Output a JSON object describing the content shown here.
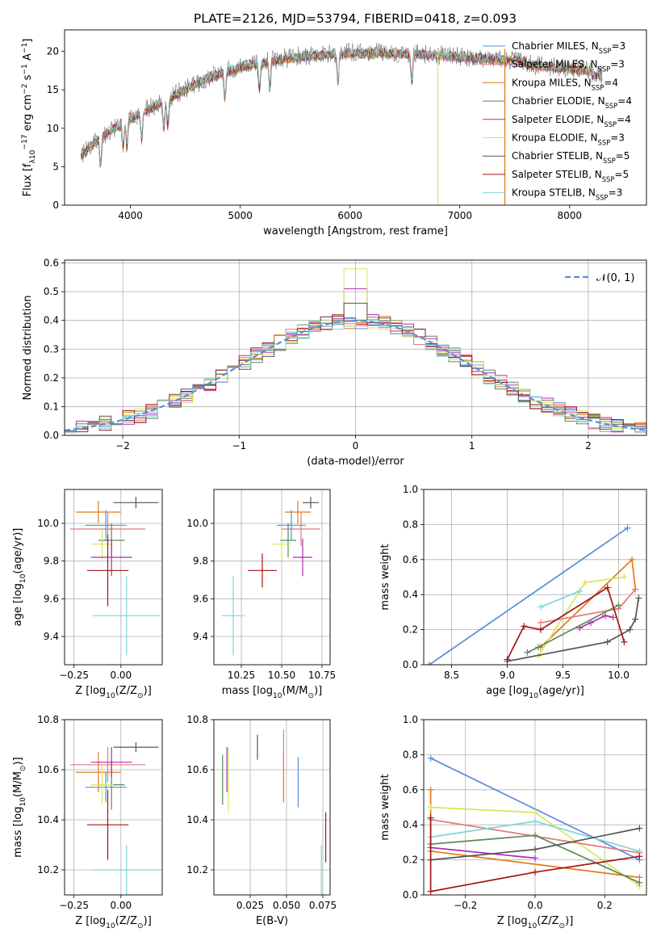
{
  "figure_title": "PLATE=2126, MJD=53794, FIBERID=0418, z=0.093",
  "colors": {
    "chabrier_miles": "#5b8dd9",
    "salpeter_miles": "#e07b7b",
    "kroupa_miles": "#e07b16",
    "chabrier_elodie": "#5b8a5b",
    "salpeter_elodie": "#b02bb0",
    "kroupa_elodie": "#d9e65c",
    "chabrier_stelib": "#555555",
    "salpeter_stelib": "#a31515",
    "kroupa_stelib": "#7fd6d6",
    "gaussian": "#5b8dd9"
  },
  "chart_data": [
    {
      "id": "spectrum",
      "type": "line",
      "xlabel": "wavelength [Angstrom, rest frame]",
      "ylabel_parts": [
        "Flux [f",
        "λ",
        "10",
        "−17",
        " erg cm",
        "−2",
        " s",
        "−1",
        " A",
        "−1",
        "]"
      ],
      "xlim": [
        3400,
        8700
      ],
      "ylim": [
        0,
        22.8
      ],
      "xticks": [
        4000,
        5000,
        6000,
        7000,
        8000
      ],
      "yticks": [
        0,
        5,
        10,
        15,
        20
      ],
      "continuum": {
        "x": [
          3550,
          3700,
          3900,
          4100,
          4300,
          4500,
          4700,
          4900,
          5100,
          5300,
          5500,
          5700,
          5900,
          6100,
          6300,
          6500,
          6700,
          6900,
          7100,
          7300,
          7500,
          7700,
          7900,
          8100,
          8300
        ],
        "y": [
          6.5,
          8.5,
          10.5,
          12.0,
          13.5,
          15.0,
          16.5,
          17.5,
          18.3,
          18.8,
          19.2,
          19.5,
          19.7,
          19.8,
          19.8,
          19.7,
          19.6,
          19.4,
          19.2,
          19.0,
          18.8,
          18.5,
          18.3,
          18.0,
          17.8
        ]
      },
      "absorption_lines": [
        3727,
        3933,
        3968,
        4102,
        4304,
        4340,
        4861,
        5175,
        5270,
        5890,
        6563
      ],
      "spikes": [
        {
          "x": 6800,
          "y": [
            0,
            20.3
          ],
          "color_key": "kroupa_elodie"
        },
        {
          "x": 7410,
          "y": [
            0,
            20.3
          ],
          "color_key": "kroupa_miles"
        }
      ],
      "series": [
        {
          "name_parts": [
            "Chabrier MILES, N",
            "SSP",
            "=3"
          ],
          "color_key": "chabrier_miles"
        },
        {
          "name_parts": [
            "Salpeter MILES, N",
            "SSP",
            "=3"
          ],
          "color_key": "salpeter_miles"
        },
        {
          "name_parts": [
            "Kroupa MILES, N",
            "SSP",
            "=4"
          ],
          "color_key": "kroupa_miles"
        },
        {
          "name_parts": [
            "Chabrier ELODIE, N",
            "SSP",
            "=4"
          ],
          "color_key": "chabrier_elodie"
        },
        {
          "name_parts": [
            "Salpeter ELODIE, N",
            "SSP",
            "=4"
          ],
          "color_key": "salpeter_elodie"
        },
        {
          "name_parts": [
            "Kroupa ELODIE, N",
            "SSP",
            "=3"
          ],
          "color_key": "kroupa_elodie"
        },
        {
          "name_parts": [
            "Chabrier STELIB, N",
            "SSP",
            "=5"
          ],
          "color_key": "chabrier_stelib"
        },
        {
          "name_parts": [
            "Salpeter STELIB, N",
            "SSP",
            "=5"
          ],
          "color_key": "salpeter_stelib"
        },
        {
          "name_parts": [
            "Kroupa STELIB, N",
            "SSP",
            "=3"
          ],
          "color_key": "kroupa_stelib"
        }
      ],
      "legend_position": "right",
      "grid": false
    },
    {
      "id": "residuals",
      "type": "histogram",
      "xlabel": "(data-model)/error",
      "ylabel": "Normed distribution",
      "xlim": [
        -2.5,
        2.5
      ],
      "ylim": [
        0,
        0.61
      ],
      "xticks": [
        -2,
        -1,
        0,
        1,
        2
      ],
      "xtick_labels": [
        "−2",
        "−1",
        "0",
        "1",
        "2"
      ],
      "yticks": [
        0.0,
        0.1,
        0.2,
        0.3,
        0.4,
        0.5,
        0.6
      ],
      "bin_width": 0.1,
      "grid": true,
      "gaussian": {
        "mean": 0,
        "sigma": 1,
        "label_parts": [
          "𝒩",
          "(0, 1)"
        ],
        "color_key": "gaussian"
      },
      "peaks": {
        "kroupa_elodie": 0.58,
        "chabrier_stelib": 0.46,
        "salpeter_elodie": 0.51
      },
      "legend_position": "upper right"
    },
    {
      "id": "age_Z",
      "type": "errorbar",
      "xlabel_parts": [
        "Z [log",
        "10",
        "(Z/Z",
        "⊙",
        ")]"
      ],
      "ylabel_parts": [
        "age  [log",
        "10",
        "(age/yr)]"
      ],
      "xlim": [
        -0.3,
        0.22
      ],
      "ylim": [
        9.25,
        10.18
      ],
      "xticks": [
        -0.25,
        0.0
      ],
      "xtick_labels": [
        "−0.25",
        "0.00"
      ],
      "yticks": [
        9.4,
        9.6,
        9.8,
        10.0
      ],
      "ytick_labels": [
        "9.4",
        "9.6",
        "9.8",
        "10.0"
      ],
      "grid": true,
      "points": [
        {
          "x": 0.08,
          "xerr": 0.12,
          "y": 10.11,
          "yerr": 0.03,
          "color_key": "chabrier_stelib"
        },
        {
          "x": -0.12,
          "xerr": 0.12,
          "y": 10.06,
          "yerr": 0.06,
          "color_key": "kroupa_miles"
        },
        {
          "x": -0.07,
          "xerr": 0.2,
          "y": 9.97,
          "yerr": 0.09,
          "color_key": "salpeter_miles"
        },
        {
          "x": -0.08,
          "xerr": 0.11,
          "y": 9.99,
          "yerr": 0.08,
          "color_key": "chabrier_miles"
        },
        {
          "x": -0.05,
          "xerr": 0.07,
          "y": 9.91,
          "yerr": 0.09,
          "color_key": "chabrier_elodie"
        },
        {
          "x": -0.1,
          "xerr": 0.06,
          "y": 9.89,
          "yerr": 0.08,
          "color_key": "kroupa_elodie"
        },
        {
          "x": -0.05,
          "xerr": 0.11,
          "y": 9.82,
          "yerr": 0.1,
          "color_key": "salpeter_elodie"
        },
        {
          "x": -0.07,
          "xerr": 0.11,
          "y": 9.75,
          "yerr": 0.19,
          "color_key": "salpeter_stelib"
        },
        {
          "x": 0.03,
          "xerr": 0.18,
          "y": 9.51,
          "yerr": 0.21,
          "color_key": "kroupa_stelib"
        }
      ]
    },
    {
      "id": "age_mass",
      "type": "errorbar",
      "xlabel_parts": [
        "mass [log",
        "10",
        "(M/M",
        "⊙",
        ")]"
      ],
      "xlim": [
        10.08,
        10.8
      ],
      "ylim": [
        9.25,
        10.18
      ],
      "xticks": [
        10.25,
        10.5,
        10.75
      ],
      "xtick_labels": [
        "10.25",
        "10.50",
        "10.75"
      ],
      "yticks": [
        9.4,
        9.6,
        9.8,
        10.0
      ],
      "ytick_labels": [
        "9.4",
        "9.6",
        "9.8",
        "10.0"
      ],
      "grid": true,
      "points": [
        {
          "x": 10.68,
          "xerr": 0.05,
          "y": 10.11,
          "yerr": 0.03,
          "color_key": "chabrier_stelib"
        },
        {
          "x": 10.6,
          "xerr": 0.08,
          "y": 10.06,
          "yerr": 0.06,
          "color_key": "kroupa_miles"
        },
        {
          "x": 10.62,
          "xerr": 0.12,
          "y": 9.97,
          "yerr": 0.09,
          "color_key": "salpeter_miles"
        },
        {
          "x": 10.56,
          "xerr": 0.09,
          "y": 9.99,
          "yerr": 0.08,
          "color_key": "chabrier_miles"
        },
        {
          "x": 10.54,
          "xerr": 0.05,
          "y": 9.91,
          "yerr": 0.09,
          "color_key": "chabrier_elodie"
        },
        {
          "x": 10.5,
          "xerr": 0.06,
          "y": 9.89,
          "yerr": 0.08,
          "color_key": "kroupa_elodie"
        },
        {
          "x": 10.63,
          "xerr": 0.06,
          "y": 9.82,
          "yerr": 0.1,
          "color_key": "salpeter_elodie"
        },
        {
          "x": 10.38,
          "xerr": 0.09,
          "y": 9.75,
          "yerr": 0.09,
          "color_key": "salpeter_stelib"
        },
        {
          "x": 10.2,
          "xerr": 0.07,
          "y": 9.51,
          "yerr": 0.21,
          "color_key": "kroupa_stelib"
        }
      ]
    },
    {
      "id": "mw_age",
      "type": "line",
      "xlabel_parts": [
        "age  [log",
        "10",
        "(age/yr)]"
      ],
      "ylabel": "mass weight",
      "xlim": [
        8.25,
        10.25
      ],
      "ylim": [
        0,
        1.0
      ],
      "xticks": [
        8.5,
        9.0,
        9.5,
        10.0
      ],
      "xtick_labels": [
        "8.5",
        "9.0",
        "9.5",
        "10.0"
      ],
      "yticks": [
        0.0,
        0.2,
        0.4,
        0.6,
        0.8,
        1.0
      ],
      "grid": true,
      "series": [
        {
          "color_key": "chabrier_miles",
          "x": [
            8.3,
            10.08
          ],
          "y": [
            0.0,
            0.78
          ]
        },
        {
          "color_key": "kroupa_miles",
          "x": [
            9.3,
            10.12,
            10.15
          ],
          "y": [
            0.1,
            0.6,
            0.43
          ]
        },
        {
          "color_key": "kroupa_elodie",
          "x": [
            9.28,
            9.7,
            10.05
          ],
          "y": [
            0.05,
            0.47,
            0.5
          ]
        },
        {
          "color_key": "salpeter_miles",
          "x": [
            9.3,
            10.0,
            10.15
          ],
          "y": [
            0.24,
            0.32,
            0.43
          ]
        },
        {
          "color_key": "kroupa_stelib",
          "x": [
            9.3,
            9.65
          ],
          "y": [
            0.33,
            0.42
          ]
        },
        {
          "color_key": "salpeter_elodie",
          "x": [
            9.65,
            9.75,
            9.88,
            9.95
          ],
          "y": [
            0.21,
            0.24,
            0.28,
            0.27
          ]
        },
        {
          "color_key": "chabrier_elodie",
          "x": [
            9.18,
            9.28,
            10.0
          ],
          "y": [
            0.07,
            0.1,
            0.34
          ]
        },
        {
          "color_key": "chabrier_stelib",
          "x": [
            9.0,
            9.9,
            10.1,
            10.15,
            10.18
          ],
          "y": [
            0.02,
            0.13,
            0.2,
            0.26,
            0.38
          ]
        },
        {
          "color_key": "salpeter_stelib",
          "x": [
            9.0,
            9.15,
            9.3,
            9.9,
            10.05
          ],
          "y": [
            0.03,
            0.22,
            0.2,
            0.44,
            0.13
          ]
        }
      ]
    },
    {
      "id": "mass_Z",
      "type": "errorbar",
      "xlabel_parts": [
        "Z [log",
        "10",
        "(Z/Z",
        "⊙",
        ")]"
      ],
      "ylabel_parts": [
        "mass [log",
        "10",
        "(M/M",
        "⊙",
        ")]"
      ],
      "xlim": [
        -0.3,
        0.22
      ],
      "ylim": [
        10.1,
        10.8
      ],
      "xticks": [
        -0.25,
        0.0
      ],
      "xtick_labels": [
        "−0.25",
        "0.00"
      ],
      "yticks": [
        10.2,
        10.4,
        10.6,
        10.8
      ],
      "ytick_labels": [
        "10.2",
        "10.4",
        "10.6",
        "10.8"
      ],
      "grid": true,
      "points": [
        {
          "x": 0.08,
          "xerr": 0.12,
          "y": 10.69,
          "yerr": 0.02,
          "color_key": "chabrier_stelib"
        },
        {
          "x": -0.12,
          "xerr": 0.12,
          "y": 10.59,
          "yerr": 0.08,
          "color_key": "kroupa_miles"
        },
        {
          "x": -0.07,
          "xerr": 0.2,
          "y": 10.62,
          "yerr": 0.07,
          "color_key": "salpeter_miles"
        },
        {
          "x": -0.08,
          "xerr": 0.11,
          "y": 10.53,
          "yerr": 0.06,
          "color_key": "chabrier_miles"
        },
        {
          "x": -0.05,
          "xerr": 0.07,
          "y": 10.54,
          "yerr": 0.1,
          "color_key": "chabrier_elodie"
        },
        {
          "x": -0.1,
          "xerr": 0.06,
          "y": 10.54,
          "yerr": 0.08,
          "color_key": "kroupa_elodie"
        },
        {
          "x": -0.05,
          "xerr": 0.11,
          "y": 10.63,
          "yerr": 0.06,
          "color_key": "salpeter_elodie"
        },
        {
          "x": -0.07,
          "xerr": 0.11,
          "y": 10.38,
          "yerr": 0.14,
          "color_key": "salpeter_stelib"
        },
        {
          "x": 0.03,
          "xerr": 0.18,
          "y": 10.2,
          "yerr": 0.1,
          "color_key": "kroupa_stelib"
        }
      ]
    },
    {
      "id": "mass_ebv",
      "type": "errorbar",
      "xlabel": "E(B-V)",
      "xlim": [
        0.0,
        0.08
      ],
      "ylim": [
        10.1,
        10.8
      ],
      "xticks": [
        0.025,
        0.05,
        0.075
      ],
      "xtick_labels": [
        "0.025",
        "0.050",
        "0.075"
      ],
      "yticks": [
        10.2,
        10.4,
        10.6,
        10.8
      ],
      "ytick_labels": [
        "10.2",
        "10.4",
        "10.6",
        "10.8"
      ],
      "grid": true,
      "points": [
        {
          "x": 0.03,
          "xerr": 0,
          "y": 10.69,
          "yerr": 0.05,
          "color_key": "chabrier_stelib"
        },
        {
          "x": 0.048,
          "xerr": 0,
          "y": 10.57,
          "yerr": 0.1,
          "color_key": "kroupa_miles"
        },
        {
          "x": 0.048,
          "xerr": 0,
          "y": 10.68,
          "yerr": 0.08,
          "color_key": "salpeter_miles"
        },
        {
          "x": 0.058,
          "xerr": 0,
          "y": 10.55,
          "yerr": 0.1,
          "color_key": "chabrier_miles"
        },
        {
          "x": 0.006,
          "xerr": 0,
          "y": 10.56,
          "yerr": 0.1,
          "color_key": "chabrier_elodie"
        },
        {
          "x": 0.01,
          "xerr": 0,
          "y": 10.56,
          "yerr": 0.13,
          "color_key": "kroupa_elodie"
        },
        {
          "x": 0.009,
          "xerr": 0,
          "y": 10.6,
          "yerr": 0.09,
          "color_key": "salpeter_elodie"
        },
        {
          "x": 0.077,
          "xerr": 0,
          "y": 10.33,
          "yerr": 0.1,
          "color_key": "salpeter_stelib"
        },
        {
          "x": 0.074,
          "xerr": 0,
          "y": 10.17,
          "yerr": 0.13,
          "color_key": "kroupa_stelib"
        }
      ]
    },
    {
      "id": "mw_Z",
      "type": "line",
      "xlabel_parts": [
        "Z [log",
        "10",
        "(Z/Z",
        "⊙",
        ")]"
      ],
      "ylabel": "mass weight",
      "xlim": [
        -0.32,
        0.32
      ],
      "ylim": [
        0,
        1.0
      ],
      "xticks": [
        -0.2,
        0.0,
        0.2
      ],
      "xtick_labels": [
        "−0.2",
        "0.0",
        "0.2"
      ],
      "yticks": [
        0.0,
        0.2,
        0.4,
        0.6,
        0.8,
        1.0
      ],
      "grid": true,
      "series": [
        {
          "color_key": "chabrier_miles",
          "x": [
            -0.3,
            0.3
          ],
          "y": [
            0.78,
            0.2
          ]
        },
        {
          "color_key": "kroupa_miles",
          "x": [
            -0.3,
            -0.3,
            0.3
          ],
          "y": [
            0.6,
            0.25,
            0.1
          ]
        },
        {
          "color_key": "kroupa_elodie",
          "x": [
            -0.3,
            0.0,
            0.3
          ],
          "y": [
            0.5,
            0.47,
            0.05
          ]
        },
        {
          "color_key": "salpeter_miles",
          "x": [
            -0.3,
            0.3
          ],
          "y": [
            0.43,
            0.24
          ]
        },
        {
          "color_key": "kroupa_stelib",
          "x": [
            -0.3,
            0.0,
            0.3
          ],
          "y": [
            0.33,
            0.42,
            0.25
          ]
        },
        {
          "color_key": "salpeter_elodie",
          "x": [
            -0.3,
            0.0
          ],
          "y": [
            0.27,
            0.21
          ]
        },
        {
          "color_key": "chabrier_elodie",
          "x": [
            -0.3,
            0.0,
            0.3
          ],
          "y": [
            0.29,
            0.34,
            0.07
          ]
        },
        {
          "color_key": "chabrier_stelib",
          "x": [
            -0.3,
            0.0,
            0.3
          ],
          "y": [
            0.2,
            0.26,
            0.38
          ]
        },
        {
          "color_key": "salpeter_stelib",
          "x": [
            -0.3,
            -0.3,
            0.0,
            0.3
          ],
          "y": [
            0.44,
            0.02,
            0.13,
            0.22
          ]
        }
      ]
    }
  ]
}
